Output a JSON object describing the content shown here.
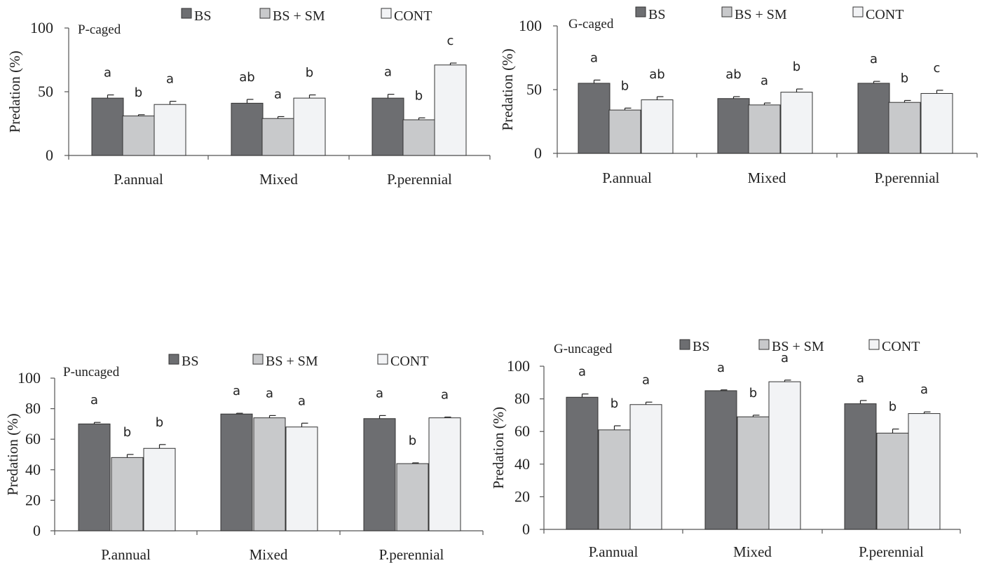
{
  "colors": {
    "BS": "#6d6e71",
    "BS + SM": "#c8c9cb",
    "CONT": "#f2f3f5",
    "outline": "#333333",
    "axis": "#555555"
  },
  "legend": [
    "BS",
    "BS + SM",
    "CONT"
  ],
  "chart_data": [
    {
      "type": "bar",
      "title": "P-caged",
      "ylabel": "Predation (%)",
      "xlabel": "",
      "categories": [
        "P.annual",
        "Mixed",
        "P.perennial"
      ],
      "ylim": [
        0,
        100
      ],
      "yticks": [
        0,
        50,
        100
      ],
      "grid": false,
      "legend_position": "top",
      "series": [
        {
          "name": "BS",
          "values": [
            45,
            41,
            45
          ],
          "errors": [
            2.5,
            3,
            3
          ],
          "labels": [
            "a",
            "ab",
            "a"
          ]
        },
        {
          "name": "BS + SM",
          "values": [
            31,
            29,
            28
          ],
          "errors": [
            1,
            1.5,
            1.5
          ],
          "labels": [
            "b",
            "a",
            "b"
          ]
        },
        {
          "name": "CONT",
          "values": [
            40,
            45,
            71
          ],
          "errors": [
            2.5,
            2.5,
            1.5
          ],
          "labels": [
            "a",
            "b",
            "c"
          ]
        }
      ]
    },
    {
      "type": "bar",
      "title": "G-caged",
      "ylabel": "Predation (%)",
      "xlabel": "",
      "categories": [
        "P.annual",
        "Mixed",
        "P.perennial"
      ],
      "ylim": [
        0,
        100
      ],
      "yticks": [
        0,
        50,
        100
      ],
      "grid": false,
      "legend_position": "top",
      "series": [
        {
          "name": "BS",
          "values": [
            55,
            43,
            55
          ],
          "errors": [
            2.5,
            1.5,
            1.5
          ],
          "labels": [
            "a",
            "ab",
            "a"
          ]
        },
        {
          "name": "BS + SM",
          "values": [
            34,
            38,
            40
          ],
          "errors": [
            1.5,
            1.5,
            1.5
          ],
          "labels": [
            "b",
            "a",
            "b"
          ]
        },
        {
          "name": "CONT",
          "values": [
            42,
            48,
            47
          ],
          "errors": [
            2.5,
            2.5,
            2.5
          ],
          "labels": [
            "ab",
            "b",
            "c"
          ]
        }
      ]
    },
    {
      "type": "bar",
      "title": "P-uncaged",
      "ylabel": "Predation (%)",
      "xlabel": "",
      "categories": [
        "P.annual",
        "Mixed",
        "P.perennial"
      ],
      "ylim": [
        0,
        100
      ],
      "yticks": [
        0,
        20,
        40,
        60,
        80,
        100
      ],
      "grid": false,
      "legend_position": "top",
      "series": [
        {
          "name": "BS",
          "values": [
            70,
            76.5,
            73.5
          ],
          "errors": [
            1,
            0.5,
            2
          ],
          "labels": [
            "a",
            "a",
            "a"
          ]
        },
        {
          "name": "BS + SM",
          "values": [
            48,
            74,
            44
          ],
          "errors": [
            2,
            1.5,
            0.5
          ],
          "labels": [
            "b",
            "a",
            "b"
          ]
        },
        {
          "name": "CONT",
          "values": [
            54,
            68,
            74
          ],
          "errors": [
            2.5,
            2.5,
            0.5
          ],
          "labels": [
            "b",
            "a",
            "a"
          ]
        }
      ]
    },
    {
      "type": "bar",
      "title": "G-uncaged",
      "ylabel": "Predation (%)",
      "xlabel": "",
      "categories": [
        "P.annual",
        "Mixed",
        "P.perennial"
      ],
      "ylim": [
        0,
        100
      ],
      "yticks": [
        0,
        20,
        40,
        60,
        80,
        100
      ],
      "grid": false,
      "legend_position": "top",
      "series": [
        {
          "name": "BS",
          "values": [
            81,
            85,
            77
          ],
          "errors": [
            2,
            0.5,
            2
          ],
          "labels": [
            "a",
            "a",
            "a"
          ]
        },
        {
          "name": "BS + SM",
          "values": [
            61,
            69,
            59
          ],
          "errors": [
            2.5,
            1,
            2.5
          ],
          "labels": [
            "b",
            "b",
            "b"
          ]
        },
        {
          "name": "CONT",
          "values": [
            76.5,
            90.5,
            71
          ],
          "errors": [
            1.5,
            1,
            1
          ],
          "labels": [
            "a",
            "a",
            "a"
          ]
        }
      ]
    }
  ]
}
